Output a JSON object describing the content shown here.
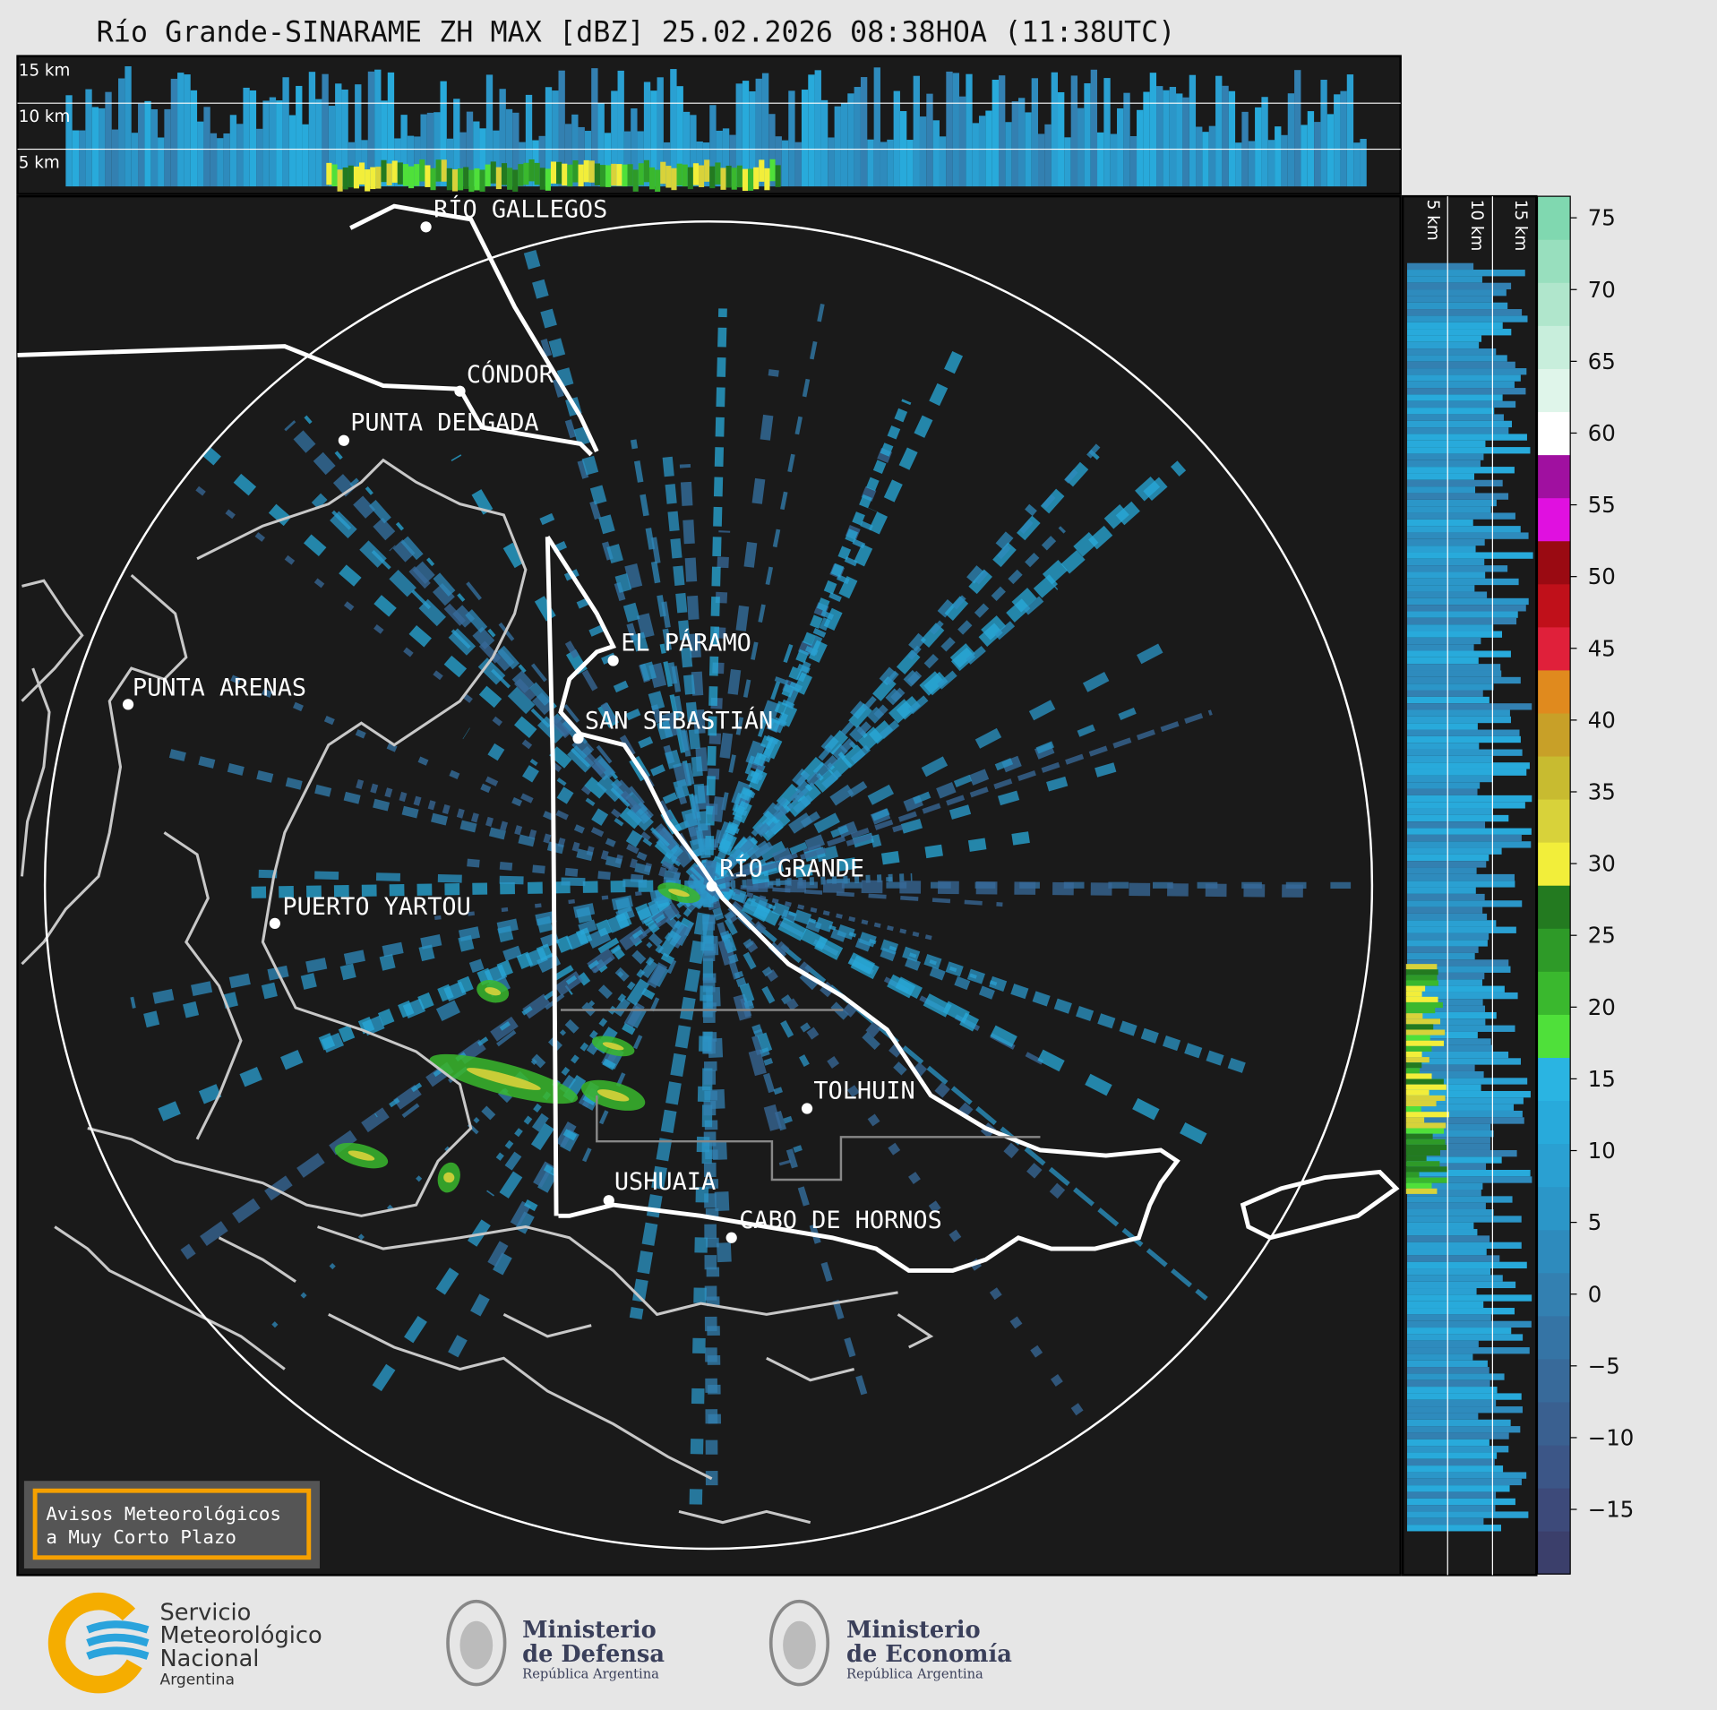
{
  "title": "Río Grande-SINARAME ZH MAX [dBZ] 25.02.2026 08:38HOA (11:38UTC)",
  "cross_section_top": {
    "height_labels": [
      "15 km",
      "10 km",
      "5 km"
    ]
  },
  "cross_section_right": {
    "height_labels": [
      "5 km",
      "10 km",
      "15 km"
    ]
  },
  "cities": [
    {
      "label": "RÍO GALLEGOS"
    },
    {
      "label": "CÓNDOR"
    },
    {
      "label": "PUNTA DELGADA"
    },
    {
      "label": "EL PÁRAMO"
    },
    {
      "label": "SAN SEBASTIÁN"
    },
    {
      "label": "PUNTA ARENAS"
    },
    {
      "label": "RÍO GRANDE"
    },
    {
      "label": "PUERTO YARTOU"
    },
    {
      "label": "TOLHUIN"
    },
    {
      "label": "USHUAIA"
    },
    {
      "label": "CABO DE HORNOS"
    }
  ],
  "colorbar": {
    "lim": [
      -19.5,
      76.5
    ],
    "ticks": [
      {
        "value": -15,
        "label": "−15"
      },
      {
        "value": -10,
        "label": "−10"
      },
      {
        "value": -5,
        "label": "−5"
      },
      0,
      5,
      10,
      15,
      20,
      25,
      30,
      35,
      40,
      45,
      50,
      55,
      60,
      65,
      70,
      75
    ],
    "colors": [
      "#3b3f6b",
      "#3d4a7a",
      "#3c5687",
      "#3a6090",
      "#386a9a",
      "#3574a5",
      "#3380b1",
      "#2e8bbd",
      "#2b96c8",
      "#2aa0d2",
      "#28aadb",
      "#2ab4e2",
      "#4fe03a",
      "#3ab82e",
      "#2e9a28",
      "#237a20",
      "#f2ee3a",
      "#d8d23a",
      "#c8bb30",
      "#c8a028",
      "#e08a1e",
      "#e0203a",
      "#c0101a",
      "#9a0a12",
      "#e010e0",
      "#a010a0",
      "#ffffff",
      "#dff5ea",
      "#c8eedc",
      "#b0e6cc",
      "#98dfbe",
      "#80d8b0"
    ]
  },
  "legend_box": {
    "lines": [
      "Avisos Meteorológicos",
      "a Muy Corto Plazo"
    ]
  },
  "logos": {
    "smn": [
      "Servicio",
      "Meteorológico",
      "Nacional",
      "Argentina"
    ],
    "defensa": [
      "Ministerio",
      "de Defensa",
      "República Argentina"
    ],
    "economia": [
      "Ministerio",
      "de Economía",
      "República Argentina"
    ]
  }
}
